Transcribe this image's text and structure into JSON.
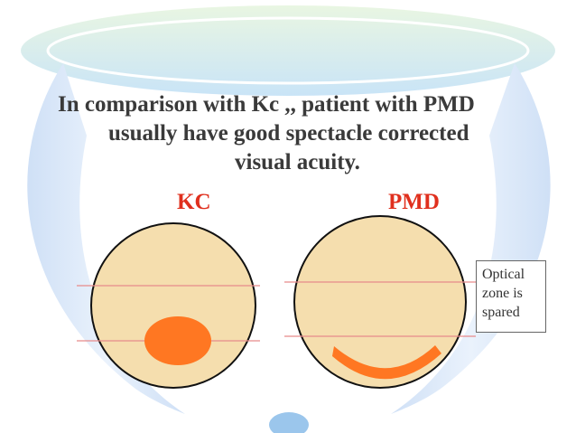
{
  "slide": {
    "title_lines": [
      "In comparison with Kc ,, patient with PMD",
      "usually have good spectacle corrected",
      "visual acuity."
    ]
  },
  "diagrams": {
    "kc": {
      "label": "KC",
      "lesion_shape": "oval-spot",
      "lesion_position": "center-inferior"
    },
    "pmd": {
      "label": "PMD",
      "lesion_shape": "crescent",
      "lesion_position": "inferior-periphery"
    }
  },
  "annotation": {
    "lines": [
      "Optical",
      "zone is",
      "spared"
    ]
  },
  "colors": {
    "cornea_fill": "#f5deae",
    "lesion": "#ff7722",
    "guide_line": "#e88a8a",
    "label": "#e0301e",
    "title": "#3a3a3a"
  }
}
